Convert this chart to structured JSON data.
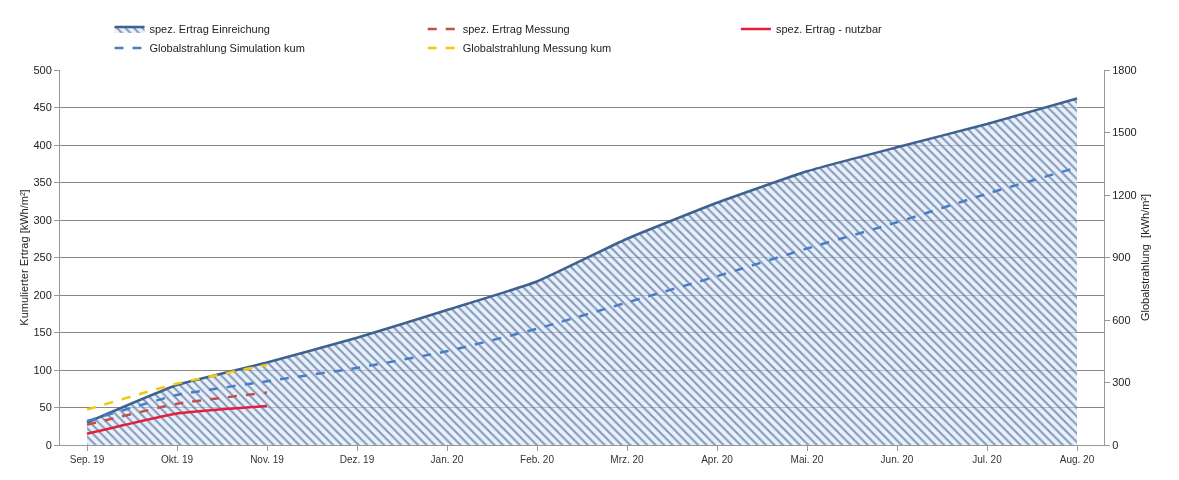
{
  "chart_data": {
    "type": "line",
    "categories": [
      "Sep. 19",
      "Okt. 19",
      "Nov. 19",
      "Dez. 19",
      "Jan. 20",
      "Feb. 20",
      "Mrz. 20",
      "Apr. 20",
      "Mai. 20",
      "Jun. 20",
      "Jul. 20",
      "Aug. 20"
    ],
    "ylabel": "Kumulierter Ertrag [kWh/m²]",
    "y2label": "Globalstrahlung  [kWh/m²]",
    "ylim": [
      0,
      500
    ],
    "yticks": [
      0,
      50,
      100,
      150,
      200,
      250,
      300,
      350,
      400,
      450,
      500
    ],
    "y2lim": [
      0,
      1800
    ],
    "y2ticks": [
      0,
      300,
      600,
      900,
      1200,
      1500,
      1800
    ],
    "grid": "y",
    "legend": "top",
    "marker": "none",
    "series": [
      {
        "name": "spez. Ertrag Einreichung",
        "type": "area",
        "color": "#3f6190",
        "line_style": "solid",
        "values": [
          30,
          80,
          110,
          143,
          180,
          218,
          275,
          323,
          365,
          397,
          428,
          462
        ]
      },
      {
        "name": "spez. Ertrag Messung",
        "color": "#c0504d",
        "line_style": "dashed",
        "values": [
          27,
          55,
          70,
          null,
          null,
          null,
          null,
          null,
          null,
          null,
          null,
          null
        ]
      },
      {
        "name": "spez. Ertrag - nutzbar",
        "color": "#e0203c",
        "line_style": "solid",
        "values": [
          15,
          42,
          52,
          null,
          null,
          null,
          null,
          null,
          null,
          null,
          null,
          null
        ]
      },
      {
        "name": "Globalstrahlung Simulation kum",
        "color": "#4a7ec4",
        "line_style": "dashed",
        "axis": "y2",
        "values": [
          115,
          240,
          306,
          370,
          450,
          558,
          684,
          810,
          943,
          1069,
          1206,
          1332
        ]
      },
      {
        "name": "Globalstrahlung Messung kum",
        "color": "#f2c80f",
        "line_style": "dashed",
        "axis": "y2",
        "values": [
          170,
          295,
          385,
          null,
          null,
          null,
          null,
          null,
          null,
          null,
          null,
          null
        ]
      }
    ]
  }
}
